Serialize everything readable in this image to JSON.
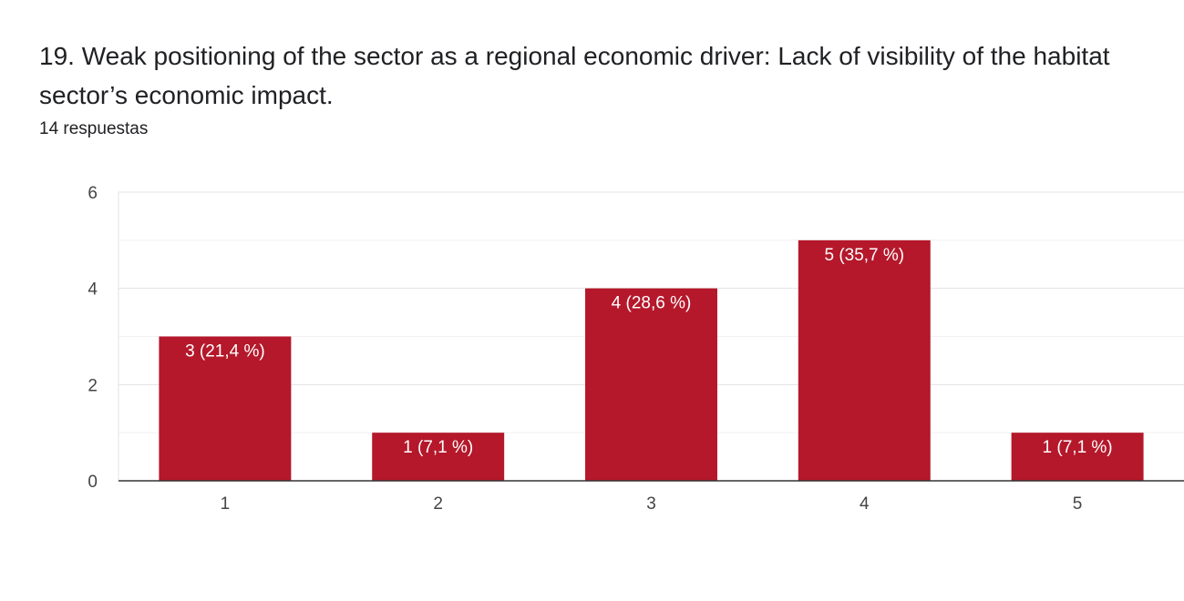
{
  "question": {
    "title": "19.  Weak positioning of the sector as a regional economic driver: Lack of visibility of the habitat sector’s economic impact.",
    "responses": "14 respuestas"
  },
  "chart_data": {
    "type": "bar",
    "categories": [
      "1",
      "2",
      "3",
      "4",
      "5"
    ],
    "values": [
      3,
      1,
      4,
      5,
      1
    ],
    "data_labels": [
      "3 (21,4 %)",
      "1 (7,1 %)",
      "4 (28,6 %)",
      "5 (35,7 %)",
      "1 (7,1 %)"
    ],
    "y_ticks": [
      0,
      2,
      4,
      6
    ],
    "ylim": [
      0,
      6
    ],
    "gridlines": true,
    "bar_color": "#b5182b",
    "label_color": "#ffffff"
  }
}
